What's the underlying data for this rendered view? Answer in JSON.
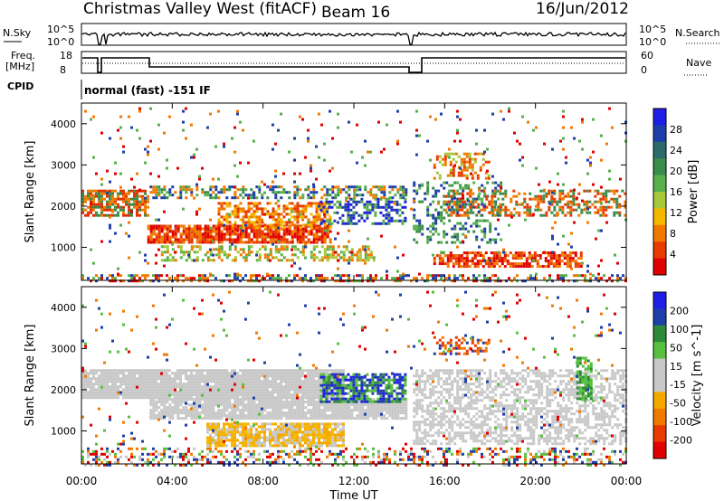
{
  "header": {
    "title": "Christmas Valley West (fitACF)",
    "beam": "Beam 16",
    "date": "16/Jun/2012"
  },
  "top_panels": {
    "nsky_label": "N.Sky",
    "nsky_ticks": [
      "10^5",
      "10^0"
    ],
    "nsearch_label": "N.Search",
    "nsearch_ticks": [
      "10^5",
      "10^0"
    ],
    "freq_label_1": "Freq.",
    "freq_label_2": "[MHz]",
    "freq_ticks": [
      "18",
      "8"
    ],
    "nave_label": "Nave",
    "nave_ticks": [
      "60",
      "0"
    ],
    "cpid_label": "CPID",
    "cpid_text": "normal (fast) -151 IF"
  },
  "time_axis": {
    "label": "Time UT",
    "ticks": [
      "00:00",
      "04:00",
      "08:00",
      "12:00",
      "16:00",
      "20:00",
      "00:00"
    ]
  },
  "chart_data": [
    {
      "type": "heatmap",
      "name": "power",
      "x_range_hours": [
        0,
        24
      ],
      "ylabel": "Slant Range [km]",
      "ylim_km": [
        200,
        4500
      ],
      "y_ticks": [
        "1000",
        "2000",
        "3000",
        "4000"
      ],
      "colorbar_label": "Power [dB]",
      "colorbar_ticks": [
        "28",
        "24",
        "20",
        "16",
        "12",
        "8",
        "4"
      ],
      "colorbar_colors": [
        "#1e1ee6",
        "#1f3fa8",
        "#2d6b6b",
        "#3a8c4a",
        "#57b04b",
        "#a5c83a",
        "#f5b800",
        "#f07a00",
        "#e83a00",
        "#e00000"
      ],
      "regions": [
        {
          "t0": 0.0,
          "t1": 2.9,
          "r0": 1800,
          "r1": 2400,
          "colors": [
            "#e03000",
            "#f07a00",
            "#3a8c4a"
          ],
          "density": 0.75
        },
        {
          "t0": 2.9,
          "t1": 11.0,
          "r0": 1100,
          "r1": 1550,
          "colors": [
            "#e00000",
            "#e83a00",
            "#f07a00"
          ],
          "density": 0.85
        },
        {
          "t0": 6.0,
          "t1": 11.0,
          "r0": 1500,
          "r1": 2100,
          "colors": [
            "#e83a00",
            "#f07a00",
            "#f5b800"
          ],
          "density": 0.6
        },
        {
          "t0": 3.0,
          "t1": 14.3,
          "r0": 2200,
          "r1": 2500,
          "colors": [
            "#3a8c4a",
            "#57b04b",
            "#f07a00",
            "#1f3fa8"
          ],
          "density": 0.5
        },
        {
          "t0": 10.5,
          "t1": 14.3,
          "r0": 1600,
          "r1": 2200,
          "colors": [
            "#1e1ee6",
            "#1f3fa8",
            "#57b04b"
          ],
          "density": 0.5
        },
        {
          "t0": 3.5,
          "t1": 13.0,
          "r0": 700,
          "r1": 1050,
          "colors": [
            "#57b04b",
            "#a5c83a",
            "#f07a00"
          ],
          "density": 0.45
        },
        {
          "t0": 14.6,
          "t1": 18.5,
          "r0": 1100,
          "r1": 2600,
          "colors": [
            "#1f3fa8",
            "#3a8c4a",
            "#57b04b"
          ],
          "density": 0.3
        },
        {
          "t0": 15.5,
          "t1": 22.0,
          "r0": 550,
          "r1": 900,
          "colors": [
            "#e00000",
            "#e83a00",
            "#f07a00"
          ],
          "density": 0.7
        },
        {
          "t0": 16.0,
          "t1": 24.0,
          "r0": 1800,
          "r1": 2400,
          "colors": [
            "#e83a00",
            "#f07a00",
            "#3a8c4a"
          ],
          "density": 0.45
        },
        {
          "t0": 15.5,
          "t1": 18.0,
          "r0": 2700,
          "r1": 3300,
          "colors": [
            "#e83a00",
            "#f07a00",
            "#a5c83a"
          ],
          "density": 0.35
        },
        {
          "t0": 0.0,
          "t1": 24.0,
          "r0": 200,
          "r1": 350,
          "colors": [
            "#e00000",
            "#f07a00",
            "#57b04b",
            "#1f3fa8"
          ],
          "density": 0.5
        },
        {
          "t0": 0.0,
          "t1": 24.0,
          "r0": 350,
          "r1": 4400,
          "colors": [
            "#1f3fa8",
            "#57b04b",
            "#f07a00",
            "#e00000"
          ],
          "density": 0.03
        }
      ]
    },
    {
      "type": "heatmap",
      "name": "velocity",
      "x_range_hours": [
        0,
        24
      ],
      "ylabel": "Slant Range [km]",
      "ylim_km": [
        200,
        4500
      ],
      "y_ticks": [
        "1000",
        "2000",
        "3000",
        "4000"
      ],
      "colorbar_label": "Velocity [m s^-1]",
      "colorbar_ticks": [
        "200",
        "100",
        "50",
        "15",
        "-15",
        "-50",
        "-100",
        "-200"
      ],
      "colorbar_colors": [
        "#1e1ee6",
        "#1f3fa8",
        "#2d8a3a",
        "#57c03c",
        "#c8c8c8",
        "#c8c8c8",
        "#f5a800",
        "#f07a00",
        "#e83a00",
        "#e00000"
      ],
      "regions": [
        {
          "t0": 0.0,
          "t1": 11.5,
          "r0": 1800,
          "r1": 2500,
          "colors": [
            "#c8c8c8"
          ],
          "density": 0.95
        },
        {
          "t0": 3.0,
          "t1": 14.3,
          "r0": 1300,
          "r1": 1800,
          "colors": [
            "#c8c8c8"
          ],
          "density": 0.9
        },
        {
          "t0": 5.5,
          "t1": 11.5,
          "r0": 650,
          "r1": 1200,
          "colors": [
            "#f5a800",
            "#f5b800",
            "#c8c8c8"
          ],
          "density": 0.85
        },
        {
          "t0": 10.5,
          "t1": 14.3,
          "r0": 1700,
          "r1": 2400,
          "colors": [
            "#1f3fa8",
            "#1e1ee6",
            "#57c03c",
            "#2d8a3a"
          ],
          "density": 0.75
        },
        {
          "t0": 14.6,
          "t1": 24.0,
          "r0": 700,
          "r1": 2500,
          "colors": [
            "#c8c8c8"
          ],
          "density": 0.55
        },
        {
          "t0": 15.5,
          "t1": 18.0,
          "r0": 2900,
          "r1": 3300,
          "colors": [
            "#1f3fa8",
            "#e83a00",
            "#f07a00"
          ],
          "density": 0.45
        },
        {
          "t0": 21.8,
          "t1": 22.4,
          "r0": 1800,
          "r1": 2800,
          "colors": [
            "#57c03c",
            "#2d8a3a"
          ],
          "density": 0.7
        },
        {
          "t0": 0.0,
          "t1": 24.0,
          "r0": 200,
          "r1": 600,
          "colors": [
            "#c8c8c8",
            "#f07a00",
            "#57c03c",
            "#1f3fa8",
            "#e00000"
          ],
          "density": 0.35
        },
        {
          "t0": 0.0,
          "t1": 24.0,
          "r0": 600,
          "r1": 4400,
          "colors": [
            "#1f3fa8",
            "#57c03c",
            "#f07a00",
            "#e00000"
          ],
          "density": 0.025
        }
      ]
    }
  ]
}
